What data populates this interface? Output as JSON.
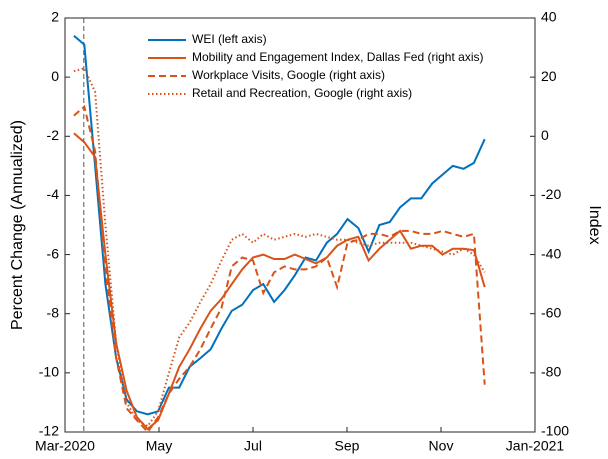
{
  "chart_data": {
    "type": "line",
    "y_label": "Percent Change (Annualized)",
    "y2_label": "Index",
    "xlim": [
      0,
      10
    ],
    "xticks": [
      {
        "value": 0,
        "label": "Mar-2020"
      },
      {
        "value": 2,
        "label": "May"
      },
      {
        "value": 4,
        "label": "Jul"
      },
      {
        "value": 6,
        "label": "Sep"
      },
      {
        "value": 8,
        "label": "Nov"
      },
      {
        "value": 10,
        "label": "Jan-2021"
      }
    ],
    "ylim": [
      -12,
      2
    ],
    "yticks": [
      -12,
      -10,
      -8,
      -6,
      -4,
      -2,
      0,
      2
    ],
    "y2lim": [
      -100,
      40
    ],
    "y2ticks": [
      -100,
      -80,
      -60,
      -40,
      -20,
      0,
      20,
      40
    ],
    "reference_line_x": 0.4,
    "legend": "upper center",
    "x": [
      0.19,
      0.41,
      0.64,
      0.86,
      1.09,
      1.31,
      1.53,
      1.76,
      1.98,
      2.21,
      2.43,
      2.65,
      2.88,
      3.1,
      3.33,
      3.55,
      3.77,
      4.0,
      4.22,
      4.45,
      4.67,
      4.89,
      5.12,
      5.34,
      5.57,
      5.79,
      6.01,
      6.24,
      6.46,
      6.69,
      6.91,
      7.13,
      7.36,
      7.58,
      7.81,
      8.03,
      8.25,
      8.48,
      8.7,
      8.93
    ],
    "series": [
      {
        "name": "WEI (left axis)",
        "color": "#0072bd",
        "style": "solid",
        "axis": "y",
        "values": [
          1.4,
          1.1,
          -3,
          -7,
          -9.5,
          -10.9,
          -11.3,
          -11.4,
          -11.3,
          -10.5,
          -10.5,
          -9.8,
          -9.5,
          -9.2,
          -8.5,
          -7.9,
          -7.7,
          -7.2,
          -7.0,
          -7.6,
          -7.2,
          -6.7,
          -6.1,
          -6.2,
          -5.6,
          -5.3,
          -4.8,
          -5.1,
          -5.9,
          -5.0,
          -4.9,
          -4.4,
          -4.1,
          -4.1,
          -3.6,
          -3.3,
          -3.0,
          -3.1,
          -2.9,
          -2.1
        ]
      },
      {
        "name": "Mobility and Engagement Index, Dallas Fed (right axis)",
        "color": "#d95319",
        "style": "solid",
        "axis": "y2",
        "values": [
          1,
          -2,
          -7,
          -40,
          -70,
          -86,
          -95,
          -99,
          -96,
          -87,
          -78,
          -72,
          -65,
          -59,
          -55,
          -50,
          -45,
          -41,
          -40,
          -41.5,
          -41.5,
          -40,
          -41.5,
          -43,
          -41,
          -37,
          -35,
          -34,
          -42,
          -38,
          -35,
          -32,
          -38,
          -37,
          -37,
          -40,
          -38,
          -38,
          -38.5,
          -51
        ]
      },
      {
        "name": "Workplace Visits, Google (right axis)",
        "color": "#d95319",
        "style": "dashed",
        "axis": "y2",
        "values": [
          7,
          10,
          -5,
          -45,
          -75,
          -92,
          -96,
          -100,
          -95,
          -87,
          -82,
          -78,
          -72,
          -65,
          -58,
          -44,
          -41,
          -42,
          -53,
          -46,
          -44,
          -45,
          -45,
          -44,
          -41,
          -51,
          -36,
          -35,
          -33,
          -33,
          -34,
          -32,
          -32,
          -33,
          -33,
          -32,
          -33,
          -34,
          -33,
          -84
        ]
      },
      {
        "name": "Retail and Recreation, Google (right axis)",
        "color": "#d95319",
        "style": "dotted",
        "axis": "y2",
        "values": [
          22,
          23,
          15,
          -30,
          -70,
          -90,
          -96,
          -98,
          -93,
          -80,
          -68,
          -63,
          -56,
          -50,
          -42,
          -35,
          -33,
          -36,
          -33,
          -35,
          -34,
          -33,
          -34,
          -33,
          -34,
          -35,
          -35,
          -36,
          -37,
          -36,
          -36,
          -36,
          -36,
          -37,
          -38,
          -39,
          -40,
          -38,
          -40,
          -46
        ]
      }
    ]
  }
}
